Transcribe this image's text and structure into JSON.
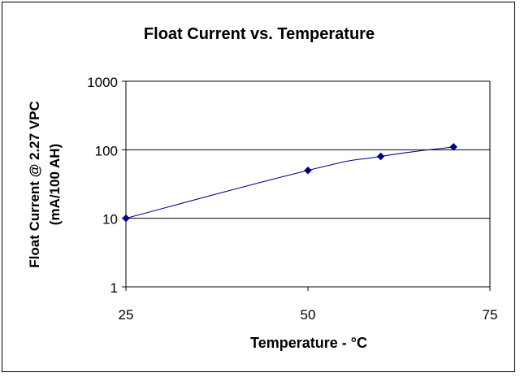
{
  "chart_data": {
    "type": "line",
    "title": "Float Current vs. Temperature",
    "xlabel": "Temperature - °C",
    "ylabel_lines": [
      "Float Current @ 2.27 VPC",
      "(mA/100 AH)"
    ],
    "x_ticks": [
      25,
      50,
      75
    ],
    "y_ticks": [
      1,
      10,
      100,
      1000
    ],
    "xlim": [
      25,
      75
    ],
    "ylim": [
      1,
      1000
    ],
    "y_scale": "log",
    "grid": "horizontal",
    "legend": "none",
    "series": [
      {
        "x": [
          25,
          50,
          60,
          70
        ],
        "values": [
          10,
          50,
          80,
          110
        ]
      }
    ]
  },
  "colors": {
    "series": "#000080",
    "marker": "#000080",
    "grid": "#000000",
    "axis": "#000000"
  }
}
